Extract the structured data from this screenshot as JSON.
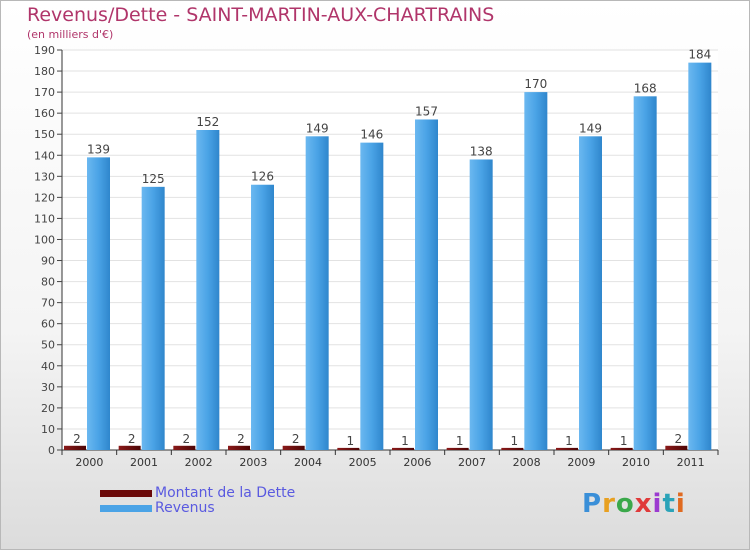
{
  "chart_data": {
    "type": "bar",
    "title": "Revenus/Dette - SAINT-MARTIN-AUX-CHARTRAINS",
    "subtitle": "(en milliers d'€)",
    "categories": [
      "2000",
      "2001",
      "2002",
      "2003",
      "2004",
      "2005",
      "2006",
      "2007",
      "2008",
      "2009",
      "2010",
      "2011"
    ],
    "series": [
      {
        "name": "Montant de la Dette",
        "color": "#6b0a0a",
        "values": [
          2,
          2,
          2,
          2,
          2,
          1,
          1,
          1,
          1,
          1,
          1,
          2
        ]
      },
      {
        "name": "Revenus",
        "color": "#4aa3e6",
        "values": [
          139,
          125,
          152,
          126,
          149,
          146,
          157,
          138,
          170,
          149,
          168,
          184
        ]
      }
    ],
    "ylim": [
      0,
      190
    ],
    "ytick_step": 10,
    "grid": true,
    "legend_position": "bottom-left"
  },
  "brand": {
    "text": "Proxiti"
  }
}
